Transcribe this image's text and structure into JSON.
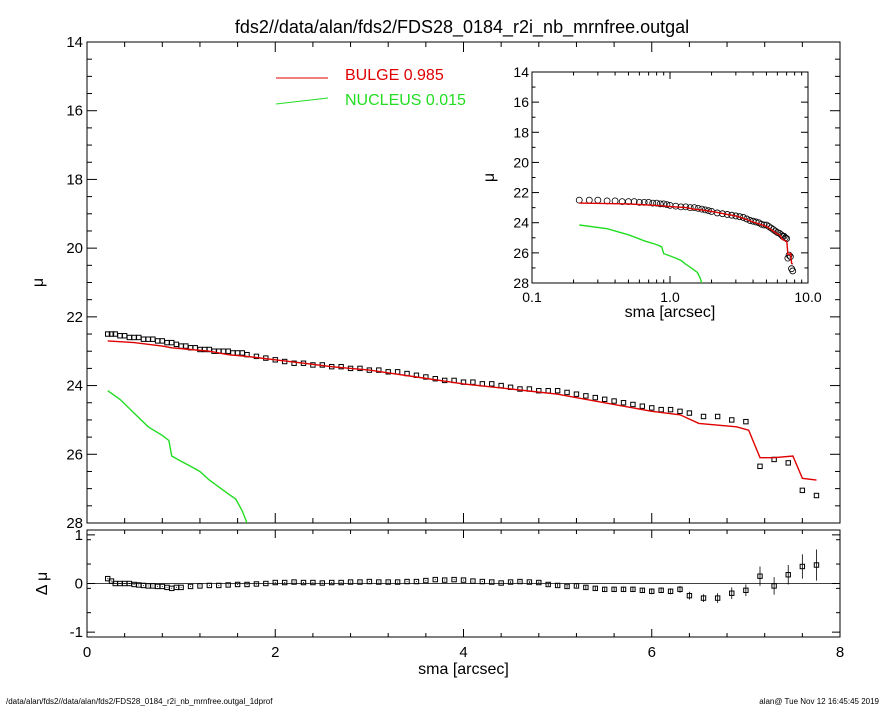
{
  "title": "fds2//data/alan/fds2/FDS28_0184_r2i_nb_mrnfree.outgal",
  "footer_left": "/data/alan/fds2//data/alan/fds2/FDS28_0184_r2i_nb_mrnfree.outgal_1dprof",
  "footer_right": "alan@  Tue Nov 12 16:45:45 2019",
  "legend": [
    {
      "label": "BULGE  0.985",
      "color": "#e00000"
    },
    {
      "label": "NUCLEUS  0.015",
      "color": "#22dd22"
    }
  ],
  "chart_data": [
    {
      "type": "line",
      "panel": "main",
      "xlabel": "",
      "ylabel": "μ",
      "xlim": [
        0,
        8
      ],
      "ylim": [
        28,
        14
      ],
      "y_inverted": true,
      "xticks": [
        0,
        2,
        4,
        6,
        8
      ],
      "yticks": [
        14,
        16,
        18,
        20,
        22,
        24,
        26,
        28
      ],
      "series": [
        {
          "name": "data",
          "style": "square-markers",
          "color": "#000000",
          "x": [
            0.22,
            0.26,
            0.3,
            0.35,
            0.4,
            0.45,
            0.5,
            0.55,
            0.6,
            0.65,
            0.7,
            0.75,
            0.8,
            0.85,
            0.9,
            0.95,
            1.0,
            1.05,
            1.1,
            1.15,
            1.2,
            1.25,
            1.3,
            1.35,
            1.4,
            1.45,
            1.5,
            1.55,
            1.6,
            1.65,
            1.7,
            1.8,
            1.9,
            2.0,
            2.1,
            2.2,
            2.3,
            2.4,
            2.5,
            2.6,
            2.7,
            2.8,
            2.9,
            3.0,
            3.1,
            3.2,
            3.3,
            3.4,
            3.5,
            3.6,
            3.7,
            3.8,
            3.9,
            4.0,
            4.1,
            4.2,
            4.3,
            4.4,
            4.5,
            4.6,
            4.7,
            4.8,
            4.9,
            5.0,
            5.1,
            5.2,
            5.3,
            5.4,
            5.5,
            5.6,
            5.7,
            5.8,
            5.9,
            6.0,
            6.1,
            6.2,
            6.3,
            6.4,
            6.55,
            6.7,
            6.85,
            7.0,
            7.15,
            7.3,
            7.45,
            7.6,
            7.75
          ],
          "y": [
            22.5,
            22.5,
            22.5,
            22.55,
            22.55,
            22.6,
            22.6,
            22.6,
            22.65,
            22.65,
            22.65,
            22.7,
            22.7,
            22.75,
            22.75,
            22.8,
            22.85,
            22.85,
            22.9,
            22.9,
            22.95,
            22.95,
            22.95,
            23.0,
            23.0,
            23.0,
            23.0,
            23.05,
            23.05,
            23.05,
            23.1,
            23.15,
            23.2,
            23.25,
            23.3,
            23.35,
            23.35,
            23.4,
            23.4,
            23.45,
            23.45,
            23.5,
            23.5,
            23.55,
            23.55,
            23.6,
            23.6,
            23.65,
            23.7,
            23.75,
            23.8,
            23.85,
            23.85,
            23.9,
            23.9,
            23.95,
            23.95,
            24.0,
            24.05,
            24.1,
            24.1,
            24.15,
            24.15,
            24.15,
            24.2,
            24.25,
            24.3,
            24.35,
            24.4,
            24.45,
            24.5,
            24.55,
            24.6,
            24.65,
            24.7,
            24.7,
            24.75,
            24.8,
            24.9,
            24.9,
            25.0,
            25.05,
            26.35,
            26.15,
            26.25,
            27.05,
            27.2
          ]
        },
        {
          "name": "BULGE",
          "style": "line",
          "color": "#e00000",
          "x": [
            0.22,
            0.5,
            0.8,
            0.9,
            1.1,
            1.3,
            1.5,
            1.7,
            2.0,
            2.3,
            2.6,
            2.8,
            3.0,
            3.5,
            4.0,
            4.5,
            5.0,
            5.5,
            6.0,
            6.3,
            6.5,
            6.9,
            7.03,
            7.15,
            7.3,
            7.5,
            7.6,
            7.75
          ],
          "y": [
            22.7,
            22.75,
            22.85,
            22.9,
            22.95,
            23.0,
            23.1,
            23.15,
            23.25,
            23.35,
            23.45,
            23.5,
            23.55,
            23.75,
            23.95,
            24.1,
            24.25,
            24.5,
            24.75,
            24.85,
            25.1,
            25.2,
            25.3,
            26.1,
            26.1,
            26.05,
            26.7,
            26.75
          ]
        },
        {
          "name": "NUCLEUS",
          "style": "line",
          "color": "#22dd22",
          "x": [
            0.22,
            0.35,
            0.5,
            0.65,
            0.8,
            0.87,
            0.9,
            1.0,
            1.1,
            1.2,
            1.3,
            1.4,
            1.5,
            1.58,
            1.65,
            1.7
          ],
          "y": [
            24.15,
            24.4,
            24.8,
            25.2,
            25.45,
            25.6,
            26.05,
            26.2,
            26.35,
            26.5,
            26.75,
            26.95,
            27.15,
            27.3,
            27.65,
            28.0
          ]
        }
      ]
    },
    {
      "type": "scatter",
      "panel": "residual",
      "xlabel": "sma [arcsec]",
      "ylabel": "Δ μ",
      "xlim": [
        0,
        8
      ],
      "ylim": [
        -1.1,
        1.1
      ],
      "xticks": [
        0,
        2,
        4,
        6,
        8
      ],
      "yticks": [
        -1,
        0,
        1
      ],
      "series": [
        {
          "name": "residual",
          "color": "#000000",
          "x": [
            0.22,
            0.26,
            0.3,
            0.35,
            0.4,
            0.45,
            0.5,
            0.55,
            0.6,
            0.65,
            0.7,
            0.75,
            0.8,
            0.85,
            0.9,
            0.95,
            1.0,
            1.1,
            1.2,
            1.3,
            1.4,
            1.5,
            1.6,
            1.7,
            1.8,
            1.9,
            2.0,
            2.1,
            2.2,
            2.3,
            2.4,
            2.5,
            2.6,
            2.7,
            2.8,
            2.9,
            3.0,
            3.1,
            3.2,
            3.3,
            3.4,
            3.5,
            3.6,
            3.7,
            3.8,
            3.9,
            4.0,
            4.1,
            4.2,
            4.3,
            4.4,
            4.5,
            4.6,
            4.7,
            4.8,
            4.9,
            5.0,
            5.1,
            5.2,
            5.3,
            5.4,
            5.5,
            5.6,
            5.7,
            5.8,
            5.9,
            6.0,
            6.1,
            6.2,
            6.3,
            6.4,
            6.55,
            6.7,
            6.85,
            7.0,
            7.15,
            7.3,
            7.45,
            7.6,
            7.75
          ],
          "y": [
            0.1,
            0.05,
            0.0,
            0.0,
            0.0,
            0.0,
            -0.02,
            -0.03,
            -0.04,
            -0.05,
            -0.05,
            -0.06,
            -0.06,
            -0.08,
            -0.1,
            -0.08,
            -0.08,
            -0.06,
            -0.05,
            -0.04,
            -0.04,
            -0.03,
            -0.02,
            -0.02,
            -0.01,
            0.0,
            0.02,
            0.02,
            0.03,
            0.02,
            0.02,
            0.01,
            0.02,
            0.02,
            0.03,
            0.03,
            0.04,
            0.03,
            0.03,
            0.03,
            0.04,
            0.04,
            0.06,
            0.08,
            0.07,
            0.08,
            0.07,
            0.05,
            0.04,
            0.03,
            0.01,
            0.03,
            0.04,
            0.03,
            0.02,
            -0.02,
            -0.04,
            -0.06,
            -0.05,
            -0.08,
            -0.1,
            -0.12,
            -0.12,
            -0.12,
            -0.12,
            -0.14,
            -0.16,
            -0.14,
            -0.16,
            -0.12,
            -0.25,
            -0.3,
            -0.3,
            -0.2,
            -0.14,
            0.15,
            -0.05,
            0.18,
            0.35,
            0.38
          ],
          "err": [
            0.01,
            0.01,
            0.01,
            0.01,
            0.01,
            0.01,
            0.01,
            0.01,
            0.01,
            0.01,
            0.01,
            0.01,
            0.01,
            0.01,
            0.01,
            0.01,
            0.01,
            0.01,
            0.01,
            0.01,
            0.01,
            0.01,
            0.01,
            0.01,
            0.01,
            0.01,
            0.01,
            0.01,
            0.01,
            0.01,
            0.01,
            0.01,
            0.01,
            0.01,
            0.01,
            0.01,
            0.01,
            0.01,
            0.01,
            0.01,
            0.01,
            0.01,
            0.01,
            0.01,
            0.01,
            0.01,
            0.01,
            0.01,
            0.01,
            0.01,
            0.01,
            0.02,
            0.02,
            0.02,
            0.02,
            0.03,
            0.03,
            0.03,
            0.03,
            0.04,
            0.04,
            0.04,
            0.04,
            0.05,
            0.05,
            0.05,
            0.06,
            0.06,
            0.06,
            0.07,
            0.08,
            0.08,
            0.1,
            0.12,
            0.12,
            0.2,
            0.18,
            0.2,
            0.25,
            0.32
          ]
        }
      ]
    },
    {
      "type": "line",
      "panel": "inset",
      "xlabel": "sma [arcsec]",
      "ylabel": "μ",
      "xlim": [
        0.1,
        10.0
      ],
      "x_scale": "log",
      "ylim": [
        28,
        14
      ],
      "y_inverted": true,
      "xticks": [
        0.1,
        1.0,
        10.0
      ],
      "xtick_labels": [
        "0.1",
        "1.0",
        "10.0"
      ],
      "yticks": [
        14,
        16,
        18,
        20,
        22,
        24,
        26,
        28
      ],
      "series": [
        {
          "name": "data",
          "style": "circle-markers",
          "color": "#000000",
          "x": [
            0.22,
            0.26,
            0.3,
            0.35,
            0.4,
            0.45,
            0.5,
            0.55,
            0.6,
            0.65,
            0.7,
            0.75,
            0.8,
            0.85,
            0.9,
            0.95,
            1.0,
            1.1,
            1.2,
            1.3,
            1.4,
            1.5,
            1.6,
            1.7,
            1.8,
            1.9,
            2.0,
            2.2,
            2.4,
            2.6,
            2.8,
            3.0,
            3.2,
            3.4,
            3.6,
            3.8,
            4.0,
            4.2,
            4.4,
            4.6,
            4.8,
            5.0,
            5.2,
            5.4,
            5.6,
            5.8,
            6.0,
            6.2,
            6.4,
            6.55,
            6.7,
            6.85,
            7.0,
            7.15,
            7.3,
            7.45,
            7.6,
            7.75
          ],
          "y": [
            22.5,
            22.5,
            22.5,
            22.55,
            22.55,
            22.6,
            22.6,
            22.6,
            22.65,
            22.65,
            22.65,
            22.7,
            22.7,
            22.75,
            22.75,
            22.8,
            22.85,
            22.9,
            22.95,
            22.95,
            23.0,
            23.0,
            23.05,
            23.1,
            23.15,
            23.2,
            23.25,
            23.35,
            23.4,
            23.45,
            23.5,
            23.55,
            23.6,
            23.65,
            23.75,
            23.85,
            23.9,
            23.95,
            24.0,
            24.1,
            24.15,
            24.15,
            24.25,
            24.35,
            24.45,
            24.55,
            24.65,
            24.7,
            24.8,
            24.9,
            24.9,
            25.0,
            25.05,
            26.35,
            26.15,
            26.25,
            27.05,
            27.2
          ]
        },
        {
          "name": "BULGE",
          "style": "line",
          "color": "#e00000",
          "x": [
            0.22,
            0.5,
            0.8,
            0.9,
            1.1,
            1.3,
            1.5,
            1.7,
            2.0,
            2.3,
            2.6,
            2.8,
            3.0,
            3.5,
            4.0,
            4.5,
            5.0,
            5.5,
            6.0,
            6.3,
            6.5,
            6.9,
            7.03,
            7.15,
            7.3,
            7.5,
            7.6,
            7.75
          ],
          "y": [
            22.7,
            22.75,
            22.85,
            22.9,
            22.95,
            23.0,
            23.1,
            23.15,
            23.25,
            23.35,
            23.45,
            23.5,
            23.55,
            23.75,
            23.95,
            24.1,
            24.25,
            24.5,
            24.75,
            24.85,
            25.1,
            25.2,
            25.3,
            26.1,
            26.1,
            26.05,
            26.7,
            26.75
          ]
        },
        {
          "name": "NUCLEUS",
          "style": "line",
          "color": "#22dd22",
          "x": [
            0.22,
            0.35,
            0.5,
            0.65,
            0.8,
            0.87,
            0.9,
            1.0,
            1.1,
            1.2,
            1.3,
            1.4,
            1.5,
            1.58,
            1.65,
            1.7
          ],
          "y": [
            24.15,
            24.4,
            24.8,
            25.2,
            25.45,
            25.6,
            26.05,
            26.2,
            26.35,
            26.5,
            26.75,
            26.95,
            27.15,
            27.3,
            27.65,
            28.0
          ]
        }
      ]
    }
  ]
}
